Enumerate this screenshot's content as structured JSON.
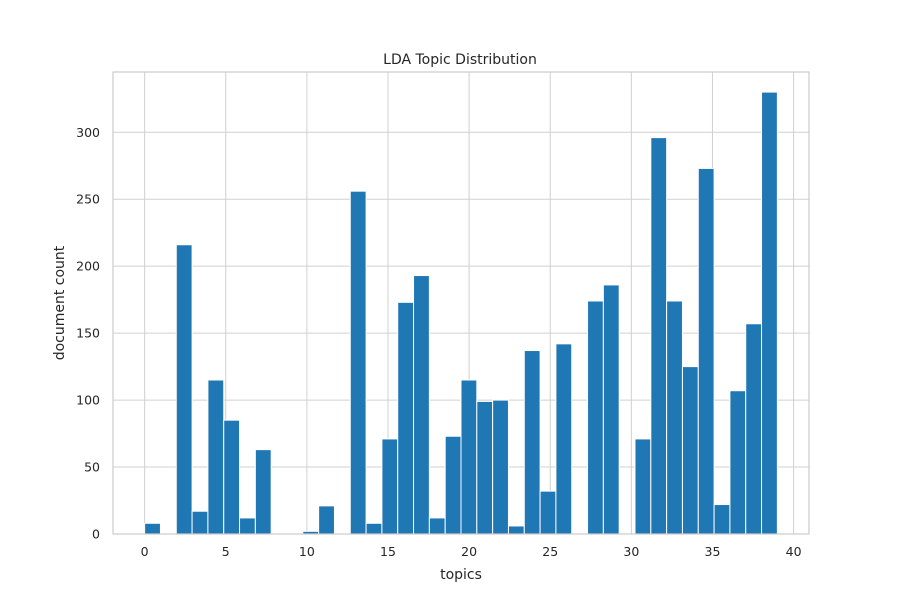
{
  "chart_data": {
    "type": "bar",
    "title": "LDA Topic Distribution",
    "xlabel": "topics",
    "ylabel": "document count",
    "xlim": [
      -1.95,
      40.95
    ],
    "ylim": [
      0,
      345
    ],
    "xticks": [
      0,
      5,
      10,
      15,
      20,
      25,
      30,
      35,
      40
    ],
    "yticks": [
      0,
      50,
      100,
      150,
      200,
      250,
      300
    ],
    "grid": true,
    "bin_edges": [
      0,
      0.975,
      1.95,
      2.925,
      3.9,
      4.875,
      5.85,
      6.825,
      7.8,
      8.775,
      9.75,
      10.725,
      11.7,
      12.675,
      13.65,
      14.625,
      15.6,
      16.575,
      17.55,
      18.525,
      19.5,
      20.475,
      21.45,
      22.425,
      23.4,
      24.375,
      25.35,
      26.325,
      27.3,
      28.275,
      29.25,
      30.225,
      31.2,
      32.175,
      33.15,
      34.125,
      35.1,
      36.075,
      37.05,
      38.025,
      39
    ],
    "values": [
      8,
      0,
      216,
      17,
      115,
      85,
      12,
      63,
      0,
      0,
      2,
      21,
      0,
      256,
      8,
      71,
      173,
      193,
      12,
      73,
      115,
      99,
      100,
      6,
      137,
      32,
      142,
      0,
      174,
      186,
      0,
      71,
      296,
      174,
      125,
      273,
      22,
      107,
      157,
      330
    ]
  }
}
